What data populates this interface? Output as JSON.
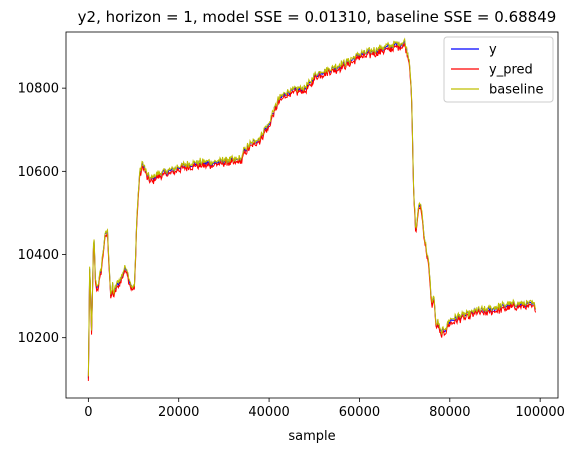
{
  "chart_data": {
    "type": "line",
    "title": "y2, horizon = 1, model SSE = 0.01310, baseline SSE = 0.68849",
    "xlabel": "sample",
    "ylabel": "",
    "xlim": [
      -4950,
      103950
    ],
    "ylim": [
      10055,
      10935
    ],
    "xticks": [
      0,
      20000,
      40000,
      60000,
      80000,
      100000
    ],
    "xtick_labels": [
      "0",
      "20000",
      "40000",
      "60000",
      "80000",
      "100000"
    ],
    "yticks": [
      10200,
      10400,
      10600,
      10800
    ],
    "ytick_labels": [
      "10200",
      "10400",
      "10600",
      "10800"
    ],
    "grid": false,
    "legend_position": "top-right",
    "series": [
      {
        "name": "y",
        "color": "#0000ff"
      },
      {
        "name": "y_pred",
        "color": "#ff0000"
      },
      {
        "name": "baseline",
        "color": "#bfbf00"
      }
    ],
    "x": [
      0,
      300,
      700,
      1200,
      1600,
      2000,
      2400,
      2800,
      3200,
      3600,
      4200,
      5000,
      5400,
      5600,
      6000,
      6600,
      7200,
      7800,
      8400,
      9000,
      9600,
      10200,
      10700,
      11300,
      12000,
      13000,
      14000,
      15000,
      16000,
      18000,
      20000,
      22000,
      24000,
      26000,
      28000,
      30000,
      32000,
      34000,
      34500,
      36000,
      38000,
      39000,
      40000,
      40500,
      42000,
      44000,
      46000,
      48000,
      49000,
      50000,
      52000,
      55000,
      58000,
      60000,
      62000,
      65000,
      67000,
      68000,
      69000,
      70000,
      70500,
      71000,
      71500,
      72000,
      72500,
      73000,
      73600,
      74500,
      75300,
      76000,
      76500,
      77000,
      77300,
      78000,
      79000,
      80000,
      82000,
      84000,
      86000,
      88000,
      90000,
      92000,
      94000,
      96000,
      98000,
      99000
    ],
    "values": [
      10100,
      10380,
      10210,
      10450,
      10330,
      10320,
      10340,
      10360,
      10400,
      10440,
      10460,
      10290,
      10330,
      10300,
      10320,
      10330,
      10340,
      10360,
      10370,
      10340,
      10320,
      10320,
      10480,
      10590,
      10620,
      10590,
      10580,
      10590,
      10595,
      10600,
      10610,
      10615,
      10620,
      10620,
      10620,
      10625,
      10625,
      10630,
      10650,
      10665,
      10680,
      10700,
      10710,
      10730,
      10770,
      10790,
      10795,
      10800,
      10810,
      10830,
      10840,
      10850,
      10865,
      10880,
      10885,
      10895,
      10900,
      10905,
      10905,
      10910,
      10890,
      10870,
      10800,
      10550,
      10450,
      10510,
      10520,
      10430,
      10380,
      10280,
      10300,
      10220,
      10240,
      10210,
      10220,
      10240,
      10250,
      10255,
      10265,
      10265,
      10270,
      10275,
      10280,
      10280,
      10280,
      10275
    ]
  }
}
